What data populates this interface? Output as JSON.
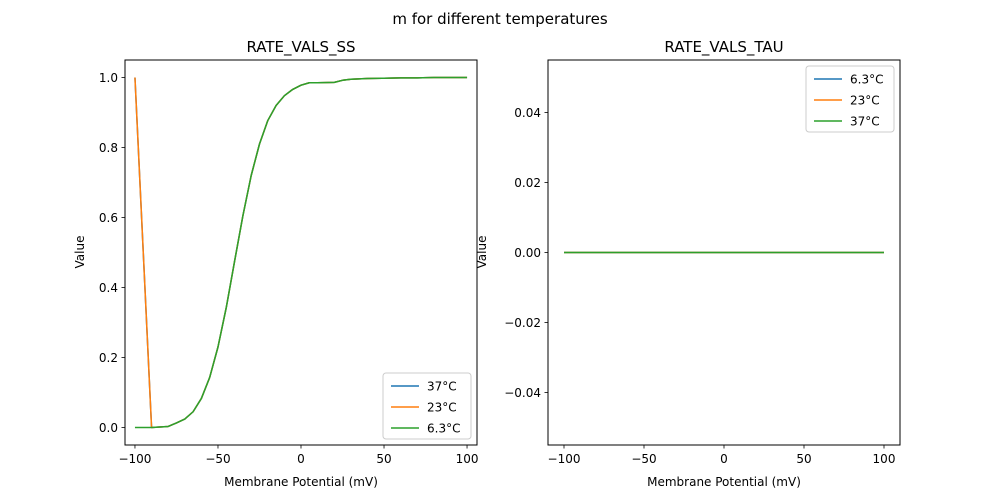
{
  "figure": {
    "suptitle": "m for different temperatures"
  },
  "chart_data": [
    {
      "type": "line",
      "title": "RATE_VALS_SS",
      "xlabel": "Membrane Potential (mV)",
      "ylabel": "Value",
      "xlim": [
        -106,
        106
      ],
      "ylim": [
        -0.05,
        1.05
      ],
      "xticks": [
        -100,
        -50,
        0,
        50,
        100
      ],
      "xtick_labels": [
        "−100",
        "−50",
        "0",
        "50",
        "100"
      ],
      "yticks": [
        0.0,
        0.2,
        0.4,
        0.6,
        0.8,
        1.0
      ],
      "ytick_labels": [
        "0.0",
        "0.2",
        "0.4",
        "0.6",
        "0.8",
        "1.0"
      ],
      "grid": false,
      "legend_position": "lower-right",
      "series": [
        {
          "name": "37°C",
          "color": "#1f77b4",
          "x": [
            -100,
            -90,
            -80,
            -75,
            -70,
            -65,
            -60,
            -55,
            -50,
            -45,
            -40,
            -35,
            -30,
            -25,
            -20,
            -15,
            -10,
            -5,
            0,
            5,
            10,
            20,
            25,
            30,
            40,
            50,
            60,
            70,
            80,
            90,
            100
          ],
          "y": [
            1.0,
            0.0,
            0.003,
            0.013,
            0.024,
            0.045,
            0.083,
            0.143,
            0.23,
            0.343,
            0.475,
            0.605,
            0.72,
            0.81,
            0.877,
            0.92,
            0.948,
            0.966,
            0.978,
            0.985,
            0.985,
            0.986,
            0.992,
            0.995,
            0.997,
            0.998,
            0.999,
            0.999,
            1.0,
            1.0,
            1.0
          ]
        },
        {
          "name": "23°C",
          "color": "#ff7f0e",
          "x": [
            -100,
            -90,
            -80,
            -75,
            -70,
            -65,
            -60,
            -55,
            -50,
            -45,
            -40,
            -35,
            -30,
            -25,
            -20,
            -15,
            -10,
            -5,
            0,
            5,
            10,
            20,
            25,
            30,
            40,
            50,
            60,
            70,
            80,
            90,
            100
          ],
          "y": [
            1.0,
            0.0,
            0.003,
            0.013,
            0.024,
            0.045,
            0.083,
            0.143,
            0.23,
            0.343,
            0.475,
            0.605,
            0.72,
            0.81,
            0.877,
            0.92,
            0.948,
            0.966,
            0.978,
            0.985,
            0.985,
            0.986,
            0.992,
            0.995,
            0.997,
            0.998,
            0.999,
            0.999,
            1.0,
            1.0,
            1.0
          ]
        },
        {
          "name": "6.3°C",
          "color": "#2ca02c",
          "x": [
            -100,
            -90,
            -80,
            -75,
            -70,
            -65,
            -60,
            -55,
            -50,
            -45,
            -40,
            -35,
            -30,
            -25,
            -20,
            -15,
            -10,
            -5,
            0,
            5,
            10,
            20,
            25,
            30,
            40,
            50,
            60,
            70,
            80,
            90,
            100
          ],
          "y": [
            0.0,
            0.0,
            0.003,
            0.013,
            0.024,
            0.045,
            0.083,
            0.143,
            0.23,
            0.343,
            0.475,
            0.605,
            0.72,
            0.81,
            0.877,
            0.92,
            0.948,
            0.966,
            0.978,
            0.985,
            0.985,
            0.986,
            0.992,
            0.995,
            0.997,
            0.998,
            0.999,
            0.999,
            1.0,
            1.0,
            1.0
          ]
        }
      ]
    },
    {
      "type": "line",
      "title": "RATE_VALS_TAU",
      "xlabel": "Membrane Potential (mV)",
      "ylabel": "Value",
      "xlim": [
        -110,
        110
      ],
      "ylim": [
        -0.055,
        0.055
      ],
      "xticks": [
        -100,
        -50,
        0,
        50,
        100
      ],
      "xtick_labels": [
        "−100",
        "−50",
        "0",
        "50",
        "100"
      ],
      "yticks": [
        -0.04,
        -0.02,
        0.0,
        0.02,
        0.04
      ],
      "ytick_labels": [
        "−0.04",
        "−0.02",
        "0.00",
        "0.02",
        "0.04"
      ],
      "grid": false,
      "legend_position": "upper-right",
      "series": [
        {
          "name": "6.3°C",
          "color": "#1f77b4",
          "x": [
            -100,
            100
          ],
          "y": [
            0,
            0
          ]
        },
        {
          "name": "23°C",
          "color": "#ff7f0e",
          "x": [
            -100,
            100
          ],
          "y": [
            0,
            0
          ]
        },
        {
          "name": "37°C",
          "color": "#2ca02c",
          "x": [
            -100,
            100
          ],
          "y": [
            0,
            0
          ]
        }
      ]
    }
  ]
}
